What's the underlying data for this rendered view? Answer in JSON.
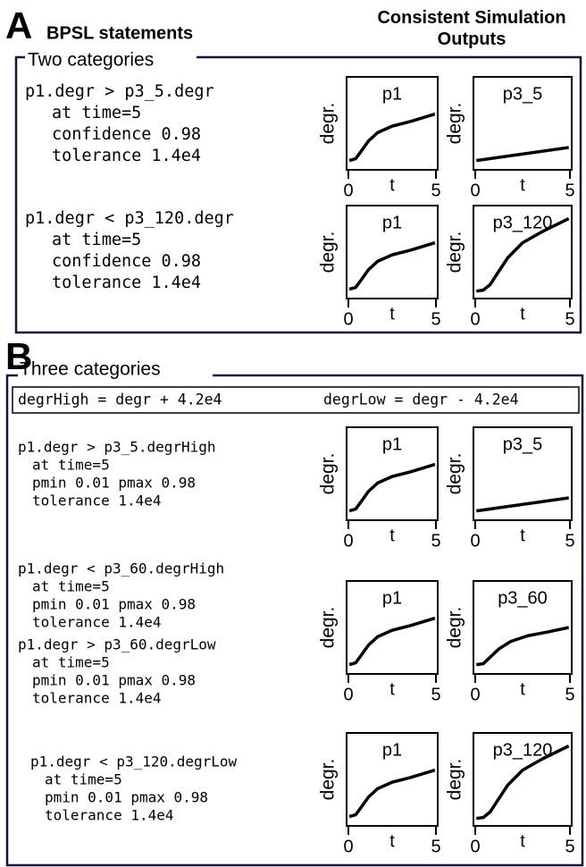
{
  "header": {
    "letter": "A",
    "left": "BPSL statements",
    "right": "Consistent Simulation Outputs"
  },
  "section_a": {
    "label": "Two categories",
    "rows": [
      {
        "statements": [
          [
            "p1.degr > p3_5.degr",
            "at time=5",
            "confidence 0.98",
            "tolerance 1.4e4"
          ]
        ],
        "plots": [
          {
            "title": "p1",
            "ylabel": "degr.",
            "xlabel": "t",
            "xticks": [
              0,
              5
            ]
          },
          {
            "title": "p3_5",
            "ylabel": "degr.",
            "xlabel": "t",
            "xticks": [
              0,
              5
            ]
          }
        ]
      },
      {
        "statements": [
          [
            "p1.degr < p3_120.degr",
            "at time=5",
            "confidence 0.98",
            "tolerance 1.4e4"
          ]
        ],
        "plots": [
          {
            "title": "p1",
            "ylabel": "degr.",
            "xlabel": "t",
            "xticks": [
              0,
              5
            ]
          },
          {
            "title": "p3_120",
            "ylabel": "degr.",
            "xlabel": "t",
            "xticks": [
              0,
              5
            ]
          }
        ]
      }
    ]
  },
  "section_b": {
    "letter": "B",
    "label": "Three categories",
    "definitions": [
      "degrHigh = degr + 4.2e4",
      "degrLow = degr - 4.2e4"
    ],
    "rows": [
      {
        "statements": [
          [
            "p1.degr > p3_5.degrHigh",
            "at time=5",
            "pmin 0.01 pmax 0.98",
            "tolerance 1.4e4"
          ]
        ],
        "plots": [
          {
            "title": "p1",
            "ylabel": "degr.",
            "xlabel": "t",
            "xticks": [
              0,
              5
            ]
          },
          {
            "title": "p3_5",
            "ylabel": "degr.",
            "xlabel": "t",
            "xticks": [
              0,
              5
            ]
          }
        ]
      },
      {
        "statements": [
          [
            "p1.degr < p3_60.degrHigh",
            "at time=5",
            "pmin 0.01 pmax 0.98",
            "tolerance 1.4e4"
          ],
          [
            "p1.degr > p3_60.degrLow",
            "at time=5",
            "pmin 0.01 pmax 0.98",
            "tolerance 1.4e4"
          ]
        ],
        "plots": [
          {
            "title": "p1",
            "ylabel": "degr.",
            "xlabel": "t",
            "xticks": [
              0,
              5
            ]
          },
          {
            "title": "p3_60",
            "ylabel": "degr.",
            "xlabel": "t",
            "xticks": [
              0,
              5
            ]
          }
        ]
      },
      {
        "statements": [
          [
            "p1.degr < p3_120.degrLow",
            "at time=5",
            "pmin 0.01 pmax 0.98",
            "tolerance 1.4e4"
          ]
        ],
        "plots": [
          {
            "title": "p1",
            "ylabel": "degr.",
            "xlabel": "t",
            "xticks": [
              0,
              5
            ]
          },
          {
            "title": "p3_120",
            "ylabel": "degr.",
            "xlabel": "t",
            "xticks": [
              0,
              5
            ]
          }
        ]
      }
    ]
  }
}
